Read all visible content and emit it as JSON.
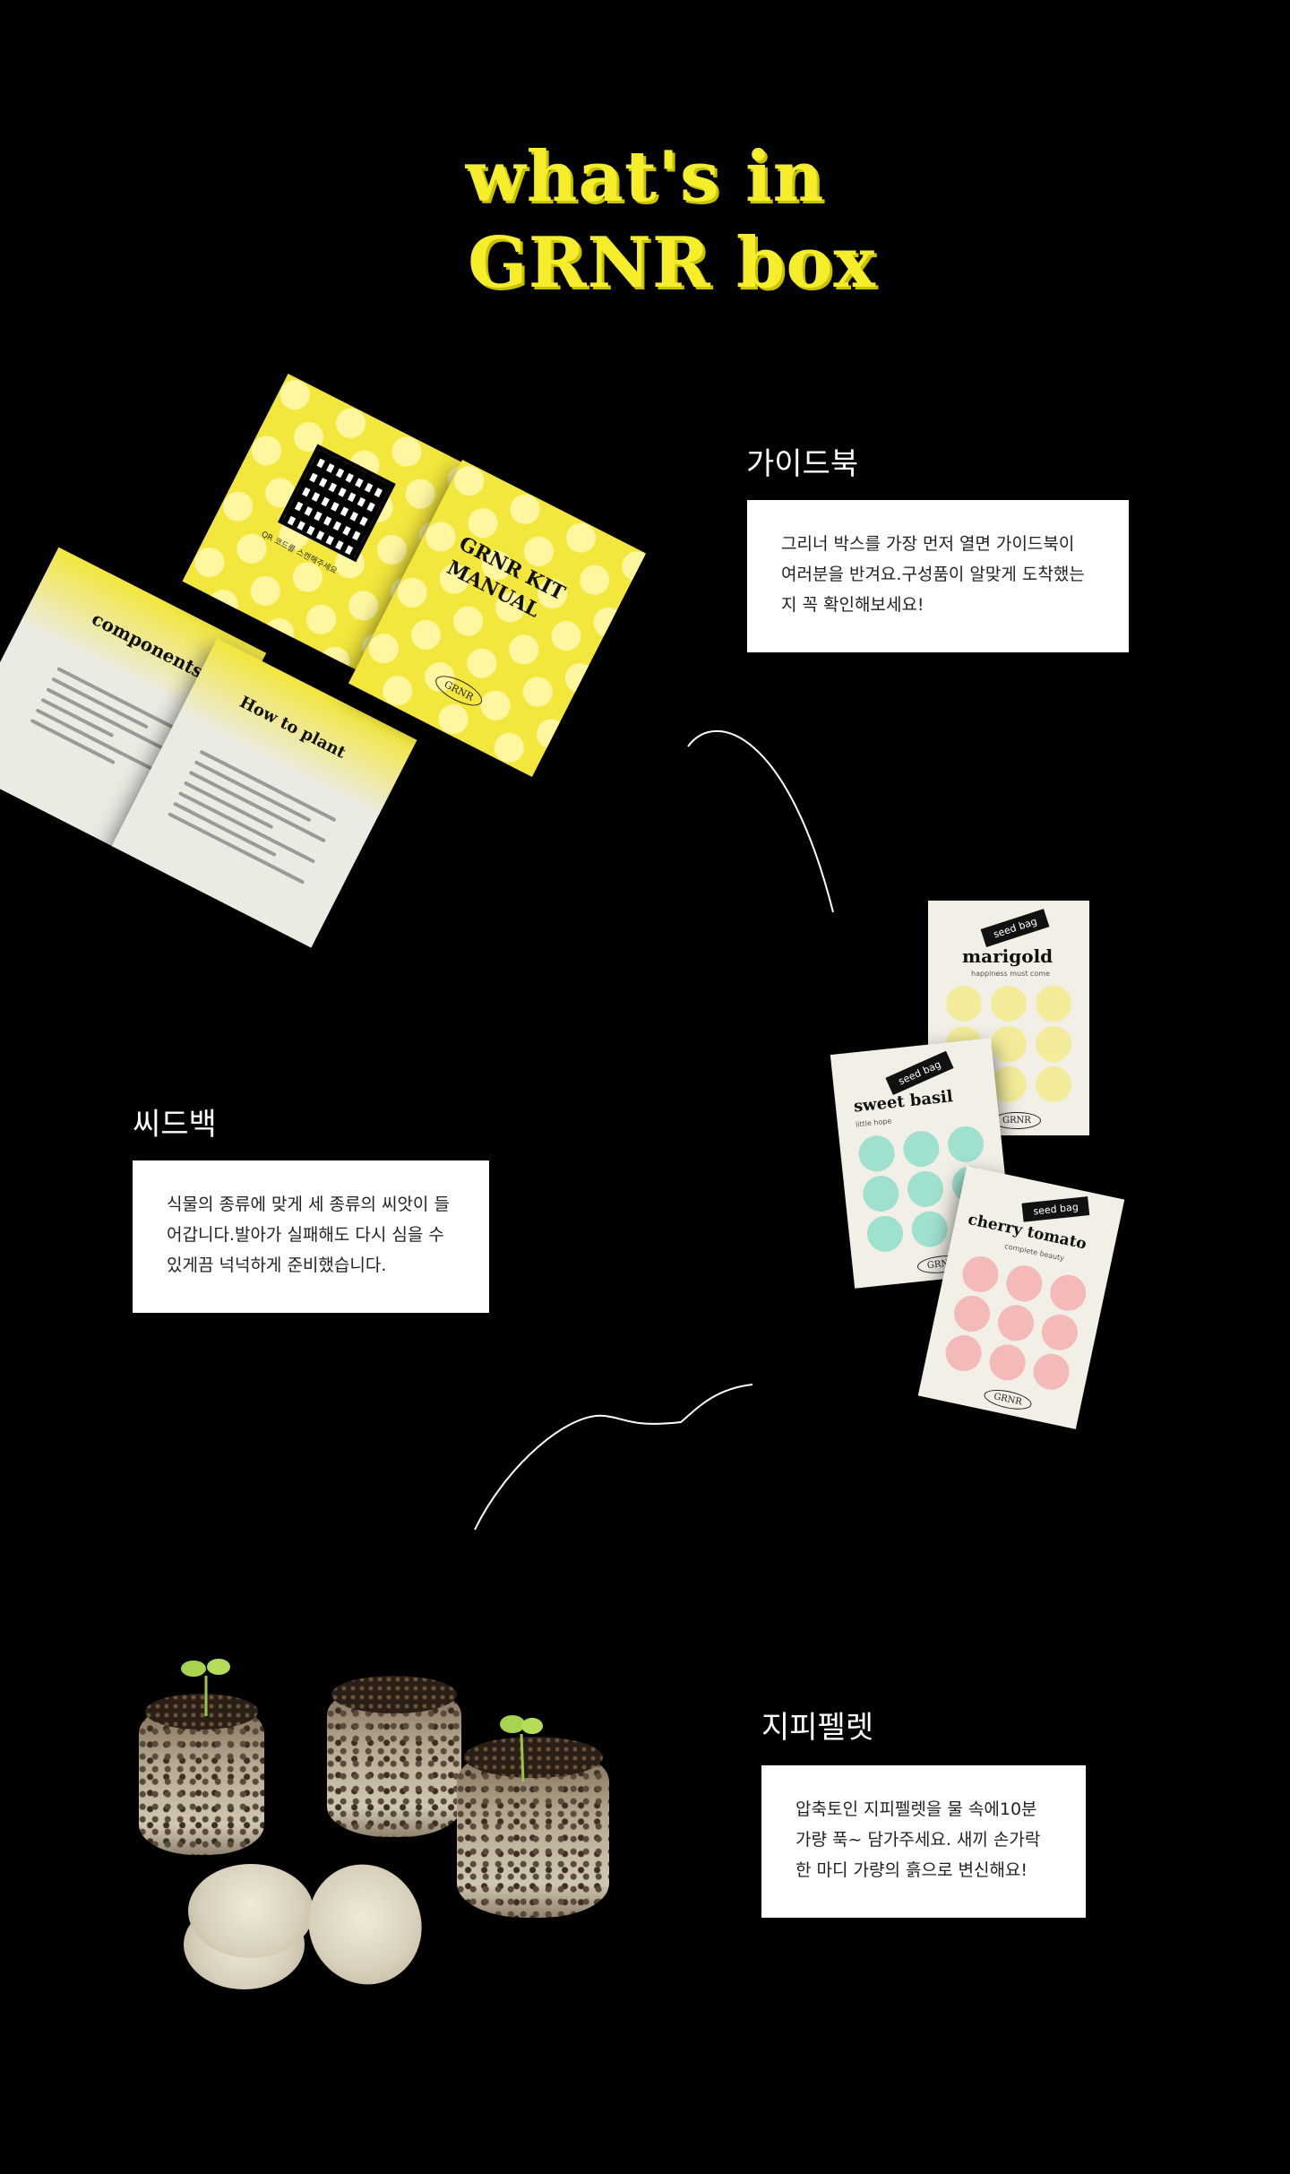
{
  "title": {
    "line1": "what's in",
    "line2": "GRNR box"
  },
  "sections": {
    "guide": {
      "heading": "가이드북",
      "description": "그리너 박스를 가장 먼저 열면 가이드북이 여러분을 반겨요.구성품이 알맞게 도착했는지 꼭 확인해보세요!",
      "book": {
        "cover_title_line1": "GRNR KIT",
        "cover_title_line2": "MANUAL",
        "cover_logo": "GRNR",
        "qr_caption": "QR 코드를 스캔해주세요",
        "inner_left_title": "components",
        "inner_right_title": "How to plant"
      }
    },
    "seed": {
      "heading": "씨드백",
      "description": "식물의 종류에 맞게 세 종류의 씨앗이 들어갑니다.발아가 실패해도 다시 심을 수 있게끔 넉넉하게 준비했습니다.",
      "bags": [
        {
          "tag": "seed bag",
          "name": "marigold",
          "sub": "happiness must come",
          "logo": "GRNR",
          "flower_color": "#f2ec9a"
        },
        {
          "tag": "seed bag",
          "name": "sweet basil",
          "sub": "little hope",
          "logo": "GRNR",
          "flower_color": "#9fe0cf"
        },
        {
          "tag": "seed bag",
          "name": "cherry tomato",
          "sub": "complete beauty",
          "logo": "GRNR",
          "flower_color": "#f4b9b9"
        }
      ]
    },
    "pellet": {
      "heading": "지피펠렛",
      "description": "압축토인 지피펠렛을 물 속에10분 가량 푹~ 담가주세요. 새끼 손가락 한 마디 가량의 흙으로 변신해요!"
    }
  },
  "colors": {
    "background": "#000000",
    "accent": "#f6ee2a",
    "box": "#ffffff"
  }
}
